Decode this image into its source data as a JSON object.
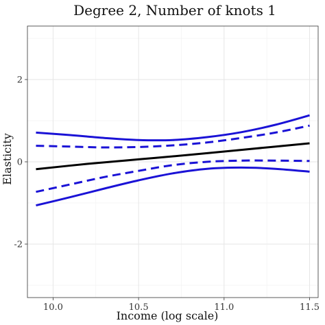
{
  "chart_data": {
    "type": "line",
    "title": "Degree 2, Number of knots 1",
    "xlabel": "Income (log scale)",
    "ylabel": "Elasticity",
    "xlim": [
      9.85,
      11.55
    ],
    "ylim": [
      -3.3,
      3.3
    ],
    "x_ticks": [
      10.0,
      10.5,
      11.0,
      11.5
    ],
    "x_tick_labels": [
      "10.0",
      "10.5",
      "11.0",
      "11.5"
    ],
    "y_ticks": [
      -2,
      0,
      2
    ],
    "y_tick_labels": [
      "-2",
      "0",
      "2"
    ],
    "grid": true,
    "series": [
      {
        "role": "estimate",
        "color": "#000000",
        "dash": "solid",
        "x": [
          9.9,
          10.2,
          10.5,
          10.8,
          11.1,
          11.5
        ],
        "y": [
          -0.18,
          -0.05,
          0.06,
          0.17,
          0.29,
          0.45
        ]
      },
      {
        "role": "upper-outer",
        "color": "#1a12d6",
        "dash": "solid",
        "x": [
          9.9,
          10.1,
          10.3,
          10.5,
          10.7,
          10.9,
          11.1,
          11.3,
          11.5
        ],
        "y": [
          0.71,
          0.65,
          0.58,
          0.53,
          0.53,
          0.6,
          0.72,
          0.9,
          1.13
        ]
      },
      {
        "role": "upper-inner",
        "color": "#1a12d6",
        "dash": "dashed",
        "x": [
          9.9,
          10.1,
          10.3,
          10.5,
          10.7,
          10.9,
          11.1,
          11.3,
          11.5
        ],
        "y": [
          0.39,
          0.37,
          0.35,
          0.36,
          0.4,
          0.47,
          0.58,
          0.71,
          0.88
        ]
      },
      {
        "role": "lower-inner",
        "color": "#1a12d6",
        "dash": "dashed",
        "x": [
          9.9,
          10.1,
          10.3,
          10.5,
          10.7,
          10.9,
          11.1,
          11.3,
          11.5
        ],
        "y": [
          -0.73,
          -0.55,
          -0.37,
          -0.22,
          -0.08,
          0.0,
          0.03,
          0.03,
          0.02
        ]
      },
      {
        "role": "lower-outer",
        "color": "#1a12d6",
        "dash": "solid",
        "x": [
          9.9,
          10.1,
          10.3,
          10.5,
          10.7,
          10.9,
          11.1,
          11.3,
          11.5
        ],
        "y": [
          -1.06,
          -0.86,
          -0.65,
          -0.45,
          -0.28,
          -0.17,
          -0.14,
          -0.17,
          -0.24
        ]
      }
    ]
  }
}
